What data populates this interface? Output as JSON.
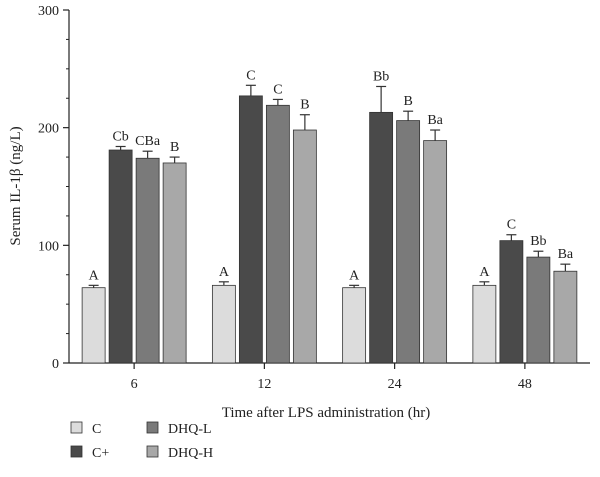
{
  "chart_data": {
    "type": "bar",
    "title": "",
    "xlabel": "Time after LPS administration (hr)",
    "ylabel": "Serum IL-1β (ng/L)",
    "ylim": [
      0,
      300
    ],
    "yticks": [
      0,
      100,
      200,
      300
    ],
    "categories": [
      "6",
      "12",
      "24",
      "48"
    ],
    "series": [
      {
        "name": "C",
        "color": "#dcdcdc",
        "values": [
          64,
          66,
          64,
          66
        ],
        "errors": [
          2,
          3,
          2,
          3
        ],
        "labels": [
          "A",
          "A",
          "A",
          "A"
        ]
      },
      {
        "name": "C+",
        "color": "#4a4a4a",
        "values": [
          181,
          227,
          213,
          104
        ],
        "errors": [
          3,
          9,
          22,
          5
        ],
        "labels": [
          "Cb",
          "C",
          "Bb",
          "C"
        ]
      },
      {
        "name": "DHQ-L",
        "color": "#7a7a7a",
        "values": [
          174,
          219,
          206,
          90
        ],
        "errors": [
          6,
          5,
          8,
          5
        ],
        "labels": [
          "CBa",
          "C",
          "B",
          "Bb"
        ]
      },
      {
        "name": "DHQ-H",
        "color": "#a8a8a8",
        "values": [
          170,
          198,
          189,
          78
        ],
        "errors": [
          5,
          13,
          9,
          6
        ],
        "labels": [
          "B",
          "B",
          "Ba",
          "Ba"
        ]
      }
    ],
    "legend_order": [
      "C",
      "DHQ-L",
      "C+",
      "DHQ-H"
    ],
    "legend_position": "bottom-left"
  }
}
